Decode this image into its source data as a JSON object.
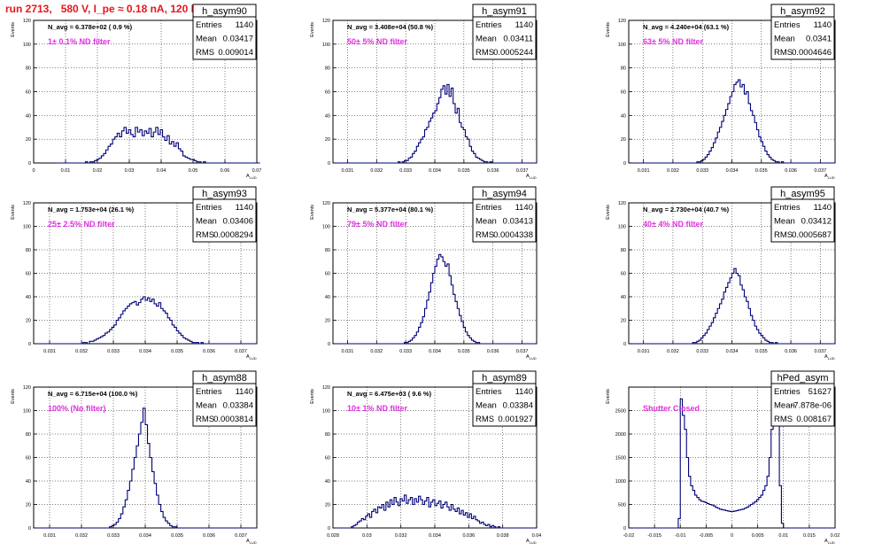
{
  "run_title": "run 2713,   580 V, I_pe ≈ 0.18 nA, 120 Hz",
  "colors": {
    "title": "#e8141c",
    "annotation": "#e030e0",
    "histogram": "#00007a",
    "grid": "#000000"
  },
  "stats_labels": {
    "entries": "Entries",
    "mean": "Mean",
    "rms": "RMS"
  },
  "chart_data": [
    {
      "type": "histogram",
      "name": "h_asym90",
      "navg": "N_avg = 6.378e+02 ( 0.9 %)",
      "filter": "1± 0.1% ND filter",
      "entries": "1140",
      "mean": "0.03417",
      "rms": "0.009014",
      "ylabel": "Events",
      "xlabel": "A",
      "xlim": [
        0,
        0.07
      ],
      "ylim": [
        0,
        120
      ],
      "grid": true,
      "xticks": [
        0,
        0.01,
        0.02,
        0.03,
        0.04,
        0.05,
        0.06,
        0.07
      ],
      "xtick_labels": [
        "0",
        "0.01",
        "0.02",
        "0.03",
        "0.04",
        "0.05",
        "0.06",
        "0.07"
      ],
      "yticks": [
        0,
        20,
        40,
        60,
        80,
        100,
        120
      ],
      "xbins": [
        0.007,
        0.071,
        90
      ],
      "counts": [
        0,
        0,
        0,
        0,
        0,
        0,
        0,
        0,
        0,
        0,
        0,
        0,
        0,
        1,
        0,
        1,
        1,
        2,
        3,
        4,
        6,
        8,
        11,
        14,
        16,
        20,
        22,
        25,
        22,
        27,
        30,
        25,
        28,
        24,
        22,
        30,
        26,
        28,
        23,
        27,
        25,
        29,
        22,
        26,
        30,
        24,
        28,
        22,
        19,
        23,
        16,
        18,
        14,
        17,
        12,
        10,
        6,
        5,
        4,
        3,
        3,
        2,
        1,
        1,
        0,
        1,
        0,
        0,
        0,
        0,
        0,
        0,
        0,
        0,
        0,
        0,
        0,
        0,
        0,
        0,
        0,
        0,
        0,
        0,
        0,
        0,
        0,
        0,
        0,
        0
      ]
    },
    {
      "type": "histogram",
      "name": "h_asym91",
      "navg": "N_avg = 3.408e+04 (50.8 %)",
      "filter": "50± 5% ND filter",
      "entries": "1140",
      "mean": "0.03411",
      "rms": "0.0005244",
      "ylabel": "Events",
      "xlabel": "A",
      "xlim": [
        0.0305,
        0.0375
      ],
      "ylim": [
        0,
        120
      ],
      "grid": true,
      "xticks": [
        0.031,
        0.032,
        0.033,
        0.034,
        0.035,
        0.036,
        0.037
      ],
      "xtick_labels": [
        "0.031",
        "0.032",
        "0.033",
        "0.034",
        "0.035",
        "0.036",
        "0.037"
      ],
      "yticks": [
        0,
        20,
        40,
        60,
        80,
        100,
        120
      ],
      "xbins": [
        0.0305,
        0.0375,
        100
      ],
      "counts": [
        0,
        0,
        0,
        0,
        0,
        0,
        0,
        0,
        0,
        0,
        0,
        0,
        0,
        0,
        0,
        0,
        0,
        0,
        0,
        0,
        0,
        0,
        0,
        0,
        0,
        0,
        0,
        0,
        0,
        0,
        0,
        0,
        1,
        0,
        1,
        2,
        2,
        4,
        5,
        8,
        10,
        14,
        17,
        20,
        22,
        28,
        30,
        35,
        38,
        42,
        44,
        50,
        55,
        62,
        65,
        58,
        66,
        56,
        63,
        50,
        42,
        46,
        34,
        30,
        28,
        22,
        20,
        14,
        10,
        8,
        5,
        4,
        3,
        2,
        1,
        1,
        0,
        1,
        0,
        0,
        0,
        0,
        0,
        0,
        0,
        0,
        0,
        0,
        0,
        0,
        0,
        0,
        0,
        0,
        0,
        0,
        0,
        0,
        0,
        0
      ]
    },
    {
      "type": "histogram",
      "name": "h_asym92",
      "navg": "N_avg = 4.240e+04 (63.1 %)",
      "filter": "63± 5% ND filter",
      "entries": "1140",
      "mean": "0.0341",
      "rms": "0.0004646",
      "ylabel": "Events",
      "xlabel": "A",
      "xlim": [
        0.0305,
        0.0375
      ],
      "ylim": [
        0,
        120
      ],
      "grid": true,
      "xticks": [
        0.031,
        0.032,
        0.033,
        0.034,
        0.035,
        0.036,
        0.037
      ],
      "xtick_labels": [
        "0.031",
        "0.032",
        "0.033",
        "0.034",
        "0.035",
        "0.036",
        "0.037"
      ],
      "yticks": [
        0,
        20,
        40,
        60,
        80,
        100,
        120
      ],
      "xbins": [
        0.0305,
        0.0375,
        100
      ],
      "counts": [
        0,
        0,
        0,
        0,
        0,
        0,
        0,
        0,
        0,
        0,
        0,
        0,
        0,
        0,
        0,
        0,
        0,
        0,
        0,
        0,
        0,
        0,
        0,
        0,
        0,
        0,
        0,
        0,
        0,
        0,
        0,
        0,
        0,
        1,
        1,
        2,
        3,
        5,
        7,
        10,
        13,
        17,
        21,
        26,
        30,
        35,
        40,
        45,
        50,
        56,
        60,
        66,
        68,
        70,
        64,
        66,
        58,
        60,
        50,
        44,
        40,
        34,
        28,
        22,
        18,
        14,
        10,
        7,
        5,
        3,
        2,
        1,
        1,
        0,
        1,
        0,
        0,
        0,
        0,
        0,
        0,
        0,
        0,
        0,
        0,
        0,
        0,
        0,
        0,
        0,
        0,
        0,
        0,
        0,
        0,
        0,
        0,
        0,
        0,
        0
      ]
    },
    {
      "type": "histogram",
      "name": "h_asym93",
      "navg": "N_avg = 1.753e+04 (26.1 %)",
      "filter": "25± 2.5% ND filter",
      "entries": "1140",
      "mean": "0.03406",
      "rms": "0.0008294",
      "ylabel": "Events",
      "xlabel": "A",
      "xlim": [
        0.0305,
        0.0375
      ],
      "ylim": [
        0,
        120
      ],
      "grid": true,
      "xticks": [
        0.031,
        0.032,
        0.033,
        0.034,
        0.035,
        0.036,
        0.037
      ],
      "xtick_labels": [
        "0.031",
        "0.032",
        "0.033",
        "0.034",
        "0.035",
        "0.036",
        "0.037"
      ],
      "yticks": [
        0,
        20,
        40,
        60,
        80,
        100,
        120
      ],
      "xbins": [
        0.0305,
        0.0375,
        100
      ],
      "counts": [
        0,
        0,
        0,
        0,
        0,
        0,
        0,
        0,
        0,
        0,
        0,
        0,
        0,
        0,
        0,
        0,
        0,
        0,
        0,
        0,
        0,
        0,
        1,
        1,
        0,
        2,
        2,
        3,
        4,
        5,
        6,
        7,
        9,
        10,
        12,
        14,
        16,
        20,
        22,
        25,
        28,
        30,
        32,
        34,
        35,
        36,
        33,
        35,
        38,
        40,
        37,
        39,
        36,
        38,
        34,
        32,
        35,
        30,
        28,
        26,
        22,
        20,
        16,
        14,
        11,
        9,
        7,
        5,
        4,
        3,
        2,
        1,
        1,
        1,
        0,
        1,
        0,
        0,
        0,
        0,
        0,
        0,
        0,
        0,
        0,
        0,
        0,
        0,
        0,
        0,
        0,
        0,
        0,
        0,
        0,
        0,
        0,
        0,
        0,
        0
      ]
    },
    {
      "type": "histogram",
      "name": "h_asym94",
      "navg": "N_avg = 5.377e+04 (80.1 %)",
      "filter": "79± 5% ND filter",
      "entries": "1140",
      "mean": "0.03413",
      "rms": "0.0004338",
      "ylabel": "Events",
      "xlabel": "A",
      "xlim": [
        0.0305,
        0.0375
      ],
      "ylim": [
        0,
        120
      ],
      "grid": true,
      "xticks": [
        0.031,
        0.032,
        0.033,
        0.034,
        0.035,
        0.036,
        0.037
      ],
      "xtick_labels": [
        "0.031",
        "0.032",
        "0.033",
        "0.034",
        "0.035",
        "0.036",
        "0.037"
      ],
      "yticks": [
        0,
        20,
        40,
        60,
        80,
        100,
        120
      ],
      "xbins": [
        0.0305,
        0.0375,
        100
      ],
      "counts": [
        0,
        0,
        0,
        0,
        0,
        0,
        0,
        0,
        0,
        0,
        0,
        0,
        0,
        0,
        0,
        0,
        0,
        0,
        0,
        0,
        0,
        0,
        0,
        0,
        0,
        0,
        0,
        0,
        0,
        0,
        0,
        0,
        0,
        0,
        0,
        1,
        1,
        2,
        3,
        5,
        7,
        10,
        14,
        18,
        23,
        30,
        37,
        44,
        52,
        60,
        66,
        72,
        76,
        74,
        70,
        66,
        68,
        58,
        50,
        42,
        36,
        30,
        24,
        19,
        14,
        10,
        7,
        5,
        3,
        2,
        1,
        1,
        0,
        0,
        0,
        0,
        0,
        0,
        0,
        0,
        0,
        0,
        0,
        0,
        0,
        0,
        0,
        0,
        0,
        0,
        0,
        0,
        0,
        0,
        0,
        0,
        0,
        0,
        0,
        0
      ]
    },
    {
      "type": "histogram",
      "name": "h_asym95",
      "navg": "N_avg = 2.730e+04 (40.7 %)",
      "filter": "40± 4% ND filter",
      "entries": "1140",
      "mean": "0.03412",
      "rms": "0.0005687",
      "ylabel": "Events",
      "xlabel": "A",
      "xlim": [
        0.0305,
        0.0375
      ],
      "ylim": [
        0,
        120
      ],
      "grid": true,
      "xticks": [
        0.031,
        0.032,
        0.033,
        0.034,
        0.035,
        0.036,
        0.037
      ],
      "xtick_labels": [
        "0.031",
        "0.032",
        "0.033",
        "0.034",
        "0.035",
        "0.036",
        "0.037"
      ],
      "yticks": [
        0,
        20,
        40,
        60,
        80,
        100,
        120
      ],
      "xbins": [
        0.0305,
        0.0375,
        100
      ],
      "counts": [
        0,
        0,
        0,
        0,
        0,
        0,
        0,
        0,
        0,
        0,
        0,
        0,
        0,
        0,
        0,
        0,
        0,
        0,
        0,
        0,
        0,
        0,
        0,
        0,
        0,
        0,
        0,
        0,
        0,
        0,
        0,
        1,
        1,
        2,
        3,
        5,
        7,
        9,
        12,
        15,
        18,
        22,
        26,
        30,
        34,
        38,
        44,
        48,
        52,
        56,
        60,
        64,
        60,
        58,
        50,
        46,
        40,
        36,
        30,
        24,
        20,
        15,
        12,
        9,
        7,
        5,
        3,
        2,
        1,
        1,
        0,
        1,
        0,
        0,
        0,
        0,
        0,
        0,
        0,
        0,
        0,
        0,
        0,
        0,
        0,
        0,
        0,
        0,
        0,
        0,
        0,
        0,
        0,
        0,
        0,
        0,
        0,
        0,
        0,
        0
      ]
    },
    {
      "type": "histogram",
      "name": "h_asym88",
      "navg": "N_avg = 6.715e+04 (100.0 %)",
      "filter": "100% (No filter)",
      "entries": "1140",
      "mean": "0.03384",
      "rms": "0.0003814",
      "ylabel": "Events",
      "xlabel": "A",
      "xlim": [
        0.0305,
        0.0375
      ],
      "ylim": [
        0,
        120
      ],
      "grid": true,
      "xticks": [
        0.031,
        0.032,
        0.033,
        0.034,
        0.035,
        0.036,
        0.037
      ],
      "xtick_labels": [
        "0.031",
        "0.032",
        "0.033",
        "0.034",
        "0.035",
        "0.036",
        "0.037"
      ],
      "yticks": [
        0,
        20,
        40,
        60,
        80,
        100,
        120
      ],
      "xbins": [
        0.0305,
        0.0375,
        100
      ],
      "counts": [
        0,
        0,
        0,
        0,
        0,
        0,
        0,
        0,
        0,
        0,
        0,
        0,
        0,
        0,
        0,
        0,
        0,
        0,
        0,
        0,
        0,
        0,
        0,
        0,
        0,
        0,
        0,
        0,
        0,
        0,
        0,
        0,
        0,
        0,
        1,
        2,
        3,
        5,
        8,
        12,
        18,
        24,
        32,
        40,
        50,
        60,
        70,
        80,
        90,
        102,
        88,
        72,
        60,
        48,
        38,
        28,
        20,
        14,
        9,
        6,
        4,
        2,
        1,
        1,
        0,
        0,
        0,
        0,
        0,
        0,
        0,
        0,
        0,
        0,
        0,
        0,
        0,
        0,
        0,
        0,
        0,
        0,
        0,
        0,
        0,
        0,
        0,
        0,
        0,
        0,
        0,
        0,
        0,
        0,
        0,
        0,
        0,
        0,
        0,
        0
      ]
    },
    {
      "type": "histogram",
      "name": "h_asym89",
      "navg": "N_avg = 6.475e+03 ( 9.6 %)",
      "filter": "10± 1% ND filter",
      "entries": "1140",
      "mean": "0.03384",
      "rms": "0.001927",
      "ylabel": "Events",
      "xlabel": "A",
      "xlim": [
        0.028,
        0.04
      ],
      "ylim": [
        0,
        120
      ],
      "grid": true,
      "xticks": [
        0.028,
        0.03,
        0.032,
        0.034,
        0.036,
        0.038,
        0.04
      ],
      "xtick_labels": [
        "0.028",
        "0.03",
        "0.032",
        "0.034",
        "0.036",
        "0.038",
        "0.04"
      ],
      "yticks": [
        0,
        20,
        40,
        60,
        80,
        100,
        120
      ],
      "xbins": [
        0.028,
        0.04,
        100
      ],
      "counts": [
        0,
        0,
        0,
        0,
        0,
        0,
        0,
        0,
        0,
        1,
        2,
        3,
        5,
        6,
        8,
        7,
        10,
        12,
        9,
        14,
        16,
        13,
        18,
        17,
        20,
        15,
        22,
        18,
        24,
        20,
        26,
        22,
        19,
        25,
        23,
        28,
        21,
        24,
        26,
        20,
        25,
        22,
        27,
        24,
        20,
        23,
        26,
        18,
        22,
        24,
        19,
        21,
        23,
        17,
        20,
        22,
        18,
        15,
        20,
        16,
        14,
        17,
        12,
        15,
        11,
        13,
        9,
        12,
        8,
        10,
        7,
        6,
        4,
        5,
        3,
        2,
        3,
        1,
        2,
        1,
        0,
        1,
        0,
        0,
        0,
        0,
        0,
        0,
        0,
        0,
        0,
        0,
        0,
        0,
        0,
        0,
        0,
        0,
        0,
        0
      ]
    },
    {
      "type": "histogram",
      "name": "hPed_asym",
      "navg": "",
      "filter": "Shutter Closed",
      "entries": "51627",
      "mean": "-7.878e-06",
      "rms": "0.008167",
      "ylabel": "Events",
      "xlabel": "A",
      "xlim": [
        -0.02,
        0.02
      ],
      "ylim": [
        0,
        3000
      ],
      "grid": true,
      "xticks": [
        -0.02,
        -0.015,
        -0.01,
        -0.005,
        0,
        0.005,
        0.01,
        0.015,
        0.02
      ],
      "xtick_labels": [
        "-0.02",
        "-0.015",
        "-0.01",
        "-0.005",
        "0",
        "0.005",
        "0.01",
        "0.015",
        "0.02"
      ],
      "yticks": [
        0,
        500,
        1000,
        1500,
        2000,
        2500
      ],
      "xbins": [
        -0.02,
        0.02,
        100
      ],
      "counts": [
        0,
        0,
        0,
        0,
        0,
        0,
        0,
        0,
        0,
        0,
        0,
        0,
        0,
        0,
        0,
        0,
        0,
        0,
        0,
        0,
        0,
        0,
        0,
        0,
        200,
        2750,
        2400,
        2100,
        1500,
        1100,
        900,
        800,
        700,
        650,
        600,
        570,
        560,
        540,
        520,
        500,
        490,
        470,
        440,
        420,
        400,
        390,
        380,
        370,
        360,
        350,
        350,
        360,
        370,
        380,
        390,
        400,
        420,
        440,
        470,
        500,
        530,
        560,
        600,
        650,
        700,
        800,
        900,
        1100,
        1500,
        2100,
        2500,
        2900,
        2600,
        900,
        100,
        0,
        0,
        0,
        0,
        0,
        0,
        0,
        0,
        0,
        0,
        0,
        0,
        0,
        0,
        0,
        0,
        0,
        0,
        0,
        0,
        0,
        0,
        0,
        0,
        0
      ]
    }
  ]
}
